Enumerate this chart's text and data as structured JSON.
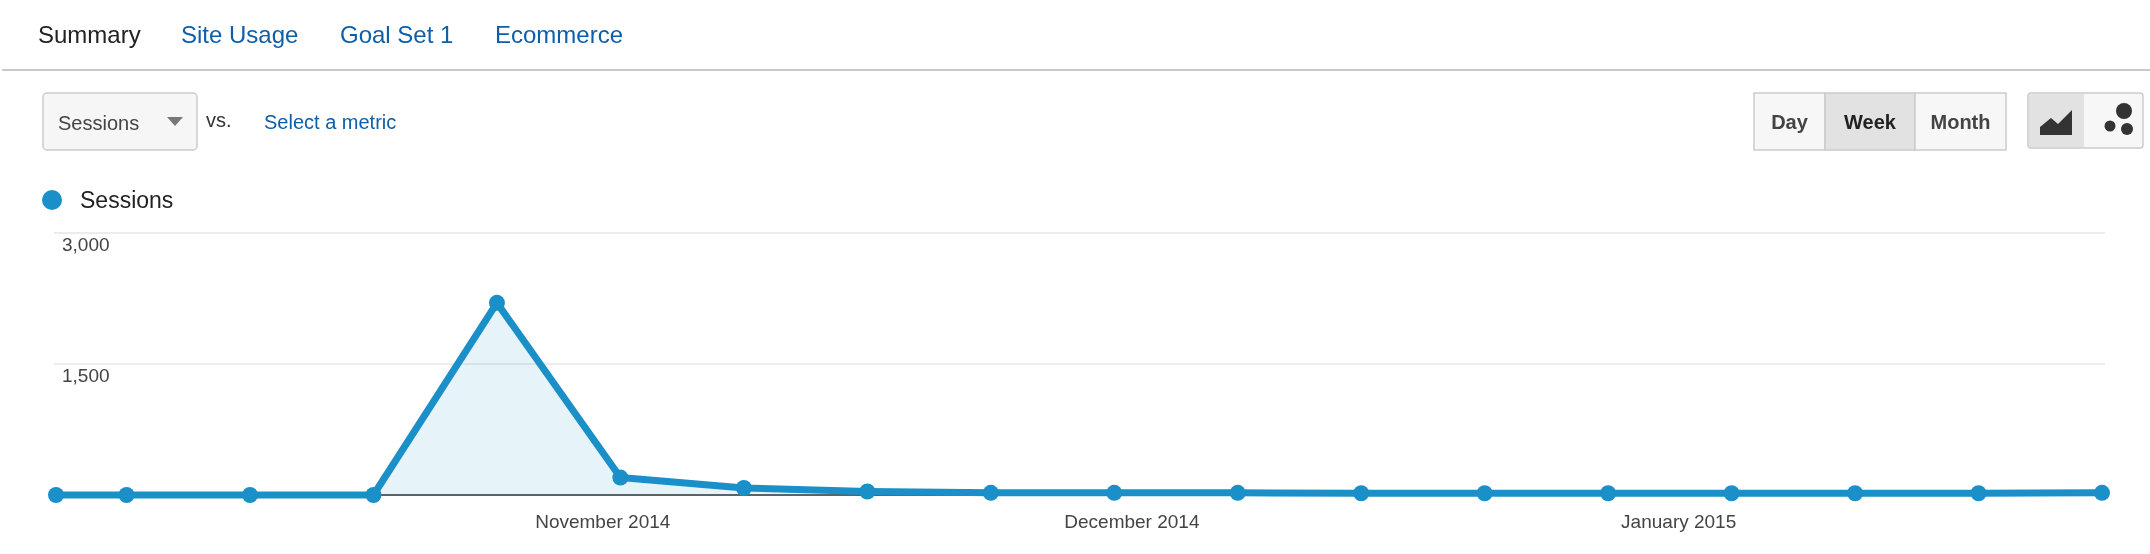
{
  "chart_data": {
    "type": "area",
    "x": [
      "2014-10-01",
      "2014-10-05",
      "2014-10-12",
      "2014-10-19",
      "2014-10-26",
      "2014-11-02",
      "2014-11-09",
      "2014-11-16",
      "2014-11-23",
      "2014-11-30",
      "2014-12-07",
      "2014-12-14",
      "2014-12-21",
      "2014-12-28",
      "2015-01-04",
      "2015-01-11",
      "2015-01-18",
      "2015-01-25"
    ],
    "series": [
      {
        "name": "Sessions",
        "color": "#1a8fc8",
        "values": [
          0,
          0,
          0,
          0,
          2200,
          200,
          80,
          40,
          25,
          25,
          25,
          20,
          20,
          20,
          20,
          20,
          20,
          25
        ]
      }
    ],
    "xlim": [
      "2014-10-01",
      "2015-01-25"
    ],
    "xticks": [
      {
        "value": "2014-11-01",
        "label": "November 2014"
      },
      {
        "value": "2014-12-01",
        "label": "December 2014"
      },
      {
        "value": "2015-01-01",
        "label": "January 2015"
      }
    ],
    "ylim": [
      0,
      3000
    ],
    "yticks": [
      {
        "value": 0,
        "label": null
      },
      {
        "value": 1500,
        "label": "1,500"
      },
      {
        "value": 3000,
        "label": "3,000"
      }
    ],
    "grid": "y",
    "legend": "top left",
    "marker": "circle",
    "line_style": "solid",
    "annotations": [
      "Summary",
      "Site Usage",
      "Goal Set 1",
      "Ecommerce",
      "Sessions",
      "vs.",
      "Select a metric",
      "Day",
      "Week",
      "Month"
    ]
  }
}
